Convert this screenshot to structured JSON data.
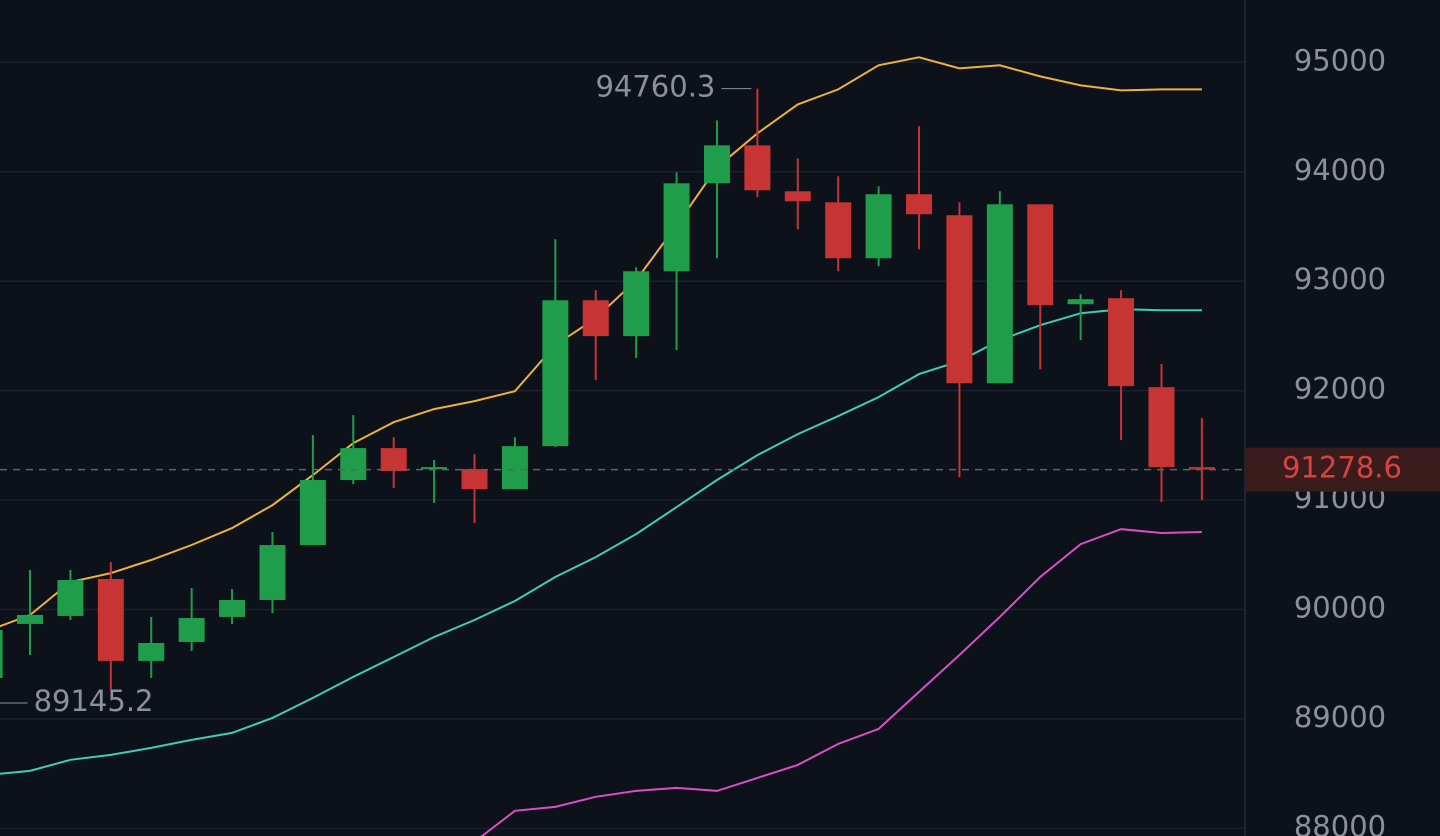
{
  "chart_data": {
    "type": "candlestick",
    "open": [
      89374,
      89868,
      89941,
      90279,
      89530,
      89703,
      89932,
      90087,
      90589,
      91183,
      91475,
      91292,
      91283,
      91100,
      91493,
      92826,
      92498,
      93091,
      93895,
      94242,
      93822,
      93721,
      93210,
      93795,
      93603,
      92068,
      93703,
      92790,
      92845,
      92032,
      91301
    ],
    "high": [
      89850,
      90361,
      90361,
      90434,
      89932,
      90196,
      90187,
      90708,
      91594,
      91776,
      91575,
      91365,
      91420,
      91575,
      93384,
      92918,
      93128,
      93995,
      94470,
      94760.3,
      94123,
      93959,
      93868,
      94416,
      93721,
      93822,
      93703,
      92881,
      92918,
      92242,
      91749
    ],
    "low": [
      89145.2,
      89584,
      89904,
      89265,
      89374,
      89621,
      89868,
      89968,
      90589,
      91146,
      91110,
      90973,
      90790,
      91100,
      91484,
      92096,
      92297,
      92370,
      93210,
      93767,
      93475,
      93091,
      93137,
      93292,
      91210,
      92068,
      92196,
      92461,
      91548,
      90982,
      91000
    ],
    "close": [
      89813,
      89950,
      90269,
      89530,
      89694,
      89922,
      90087,
      90589,
      91183,
      91475,
      91265,
      91301,
      91100,
      91493,
      92826,
      92498,
      93091,
      93895,
      94242,
      93831,
      93731,
      93210,
      93795,
      93612,
      92068,
      93703,
      92781,
      92836,
      92041,
      91301,
      91278.6
    ],
    "up_color": "#1f9d4b",
    "down_color": "#c73434",
    "series": [
      {
        "color": "#eeb13a",
        "values": [
          89813,
          89950,
          90251,
          90333,
          90452,
          90589,
          90744,
          90954,
          91228,
          91521,
          91712,
          91831,
          91904,
          91995,
          92416,
          92662,
          93009,
          93511,
          94041,
          94352,
          94616,
          94753,
          94973,
          95046,
          94945,
          94973,
          94872,
          94790,
          94744,
          94753,
          94753
        ]
      },
      {
        "color": "#3ecfb2",
        "values": [
          88489,
          88525,
          88626,
          88671,
          88735,
          88808,
          88872,
          89009,
          89192,
          89384,
          89566,
          89749,
          89904,
          90078,
          90297,
          90479,
          90689,
          90936,
          91183,
          91411,
          91603,
          91767,
          91941,
          92151,
          92269,
          92461,
          92598,
          92708,
          92744,
          92735,
          92735
        ]
      },
      {
        "color": "#d94fc6",
        "values": [
          null,
          null,
          null,
          null,
          null,
          null,
          null,
          null,
          null,
          null,
          null,
          null,
          87877,
          88160,
          88196,
          88288,
          88342,
          88370,
          88342,
          88461,
          88580,
          88772,
          88909,
          89247,
          89584,
          89932,
          90297,
          90598,
          90735,
          90699,
          90708
        ]
      }
    ],
    "ylim": [
      87930,
      95570
    ],
    "yticks": [
      88000,
      89000,
      90000,
      91000,
      92000,
      93000,
      94000,
      95000
    ],
    "grid": true
  }
}
